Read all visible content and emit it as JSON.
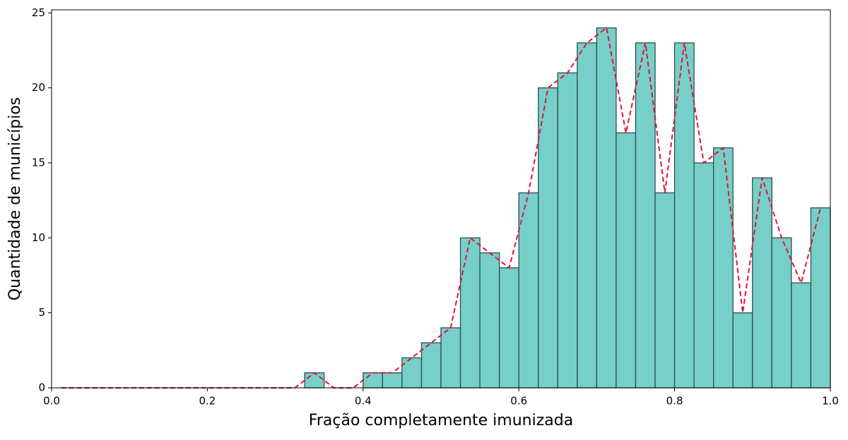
{
  "chart_data": {
    "type": "histogram",
    "xlabel": "Fração completamente imunizada",
    "ylabel": "Quantidade de municípios",
    "bins": [
      0,
      0.025,
      0.05,
      0.075,
      0.1,
      0.125,
      0.15,
      0.175,
      0.2,
      0.225,
      0.25,
      0.275,
      0.3,
      0.325,
      0.35,
      0.375,
      0.4,
      0.425,
      0.45,
      0.475,
      0.5,
      0.525,
      0.55,
      0.575,
      0.6,
      0.625,
      0.65,
      0.675,
      0.7,
      0.725,
      0.75,
      0.775,
      0.8,
      0.825,
      0.85,
      0.875,
      0.9,
      0.925,
      0.95,
      0.975,
      1
    ],
    "counts": [
      0,
      0,
      0,
      0,
      0,
      0,
      0,
      0,
      0,
      0,
      0,
      0,
      0,
      1,
      0,
      0,
      1,
      1,
      2,
      3,
      4,
      10,
      9,
      8,
      13,
      20,
      21,
      23,
      24,
      17,
      23,
      13,
      23,
      15,
      16,
      5,
      14,
      10,
      7,
      12
    ],
    "color": "#76cfc9",
    "edgecolor": "#2f4f4f",
    "line_color": "#dc143c",
    "xlim": [
      0,
      1
    ],
    "ylim": [
      0,
      25.2
    ],
    "xticks": [
      {
        "value": 0,
        "label": "0.0"
      },
      {
        "value": 0.2,
        "label": "0.2"
      },
      {
        "value": 0.4,
        "label": "0.4"
      },
      {
        "value": 0.6,
        "label": "0.6"
      },
      {
        "value": 0.8,
        "label": "0.8"
      },
      {
        "value": 1,
        "label": "1.0"
      }
    ],
    "yticks": [
      0,
      5,
      10,
      15,
      20,
      25
    ]
  }
}
